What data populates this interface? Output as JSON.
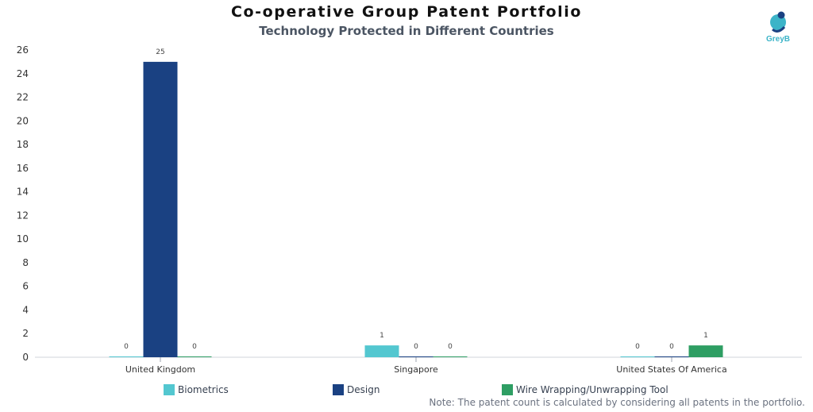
{
  "logo": {
    "text": "GreyB"
  },
  "note": "Note: The patent count is calculated by considering all patents in the portfolio.",
  "chart_data": {
    "type": "bar",
    "title": "Co-operative Group Patent Portfolio",
    "subtitle": "Technology Protected in Different Countries",
    "xlabel": "",
    "ylabel": "",
    "categories": [
      "United Kingdom",
      "Singapore",
      "United States Of America"
    ],
    "series": [
      {
        "name": "Biometrics",
        "color": "#53c7d0",
        "values": [
          0,
          1,
          0
        ]
      },
      {
        "name": "Design",
        "color": "#1a4182",
        "values": [
          25,
          0,
          0
        ]
      },
      {
        "name": "Wire Wrapping/Unwrapping Tool",
        "color": "#2e9e63",
        "values": [
          0,
          0,
          1
        ]
      }
    ],
    "ylim": [
      0,
      26
    ],
    "yticks": [
      0,
      2,
      4,
      6,
      8,
      10,
      12,
      14,
      16,
      18,
      20,
      22,
      24,
      26
    ],
    "grid": false,
    "data_labels": true,
    "legend_position": "bottom"
  }
}
